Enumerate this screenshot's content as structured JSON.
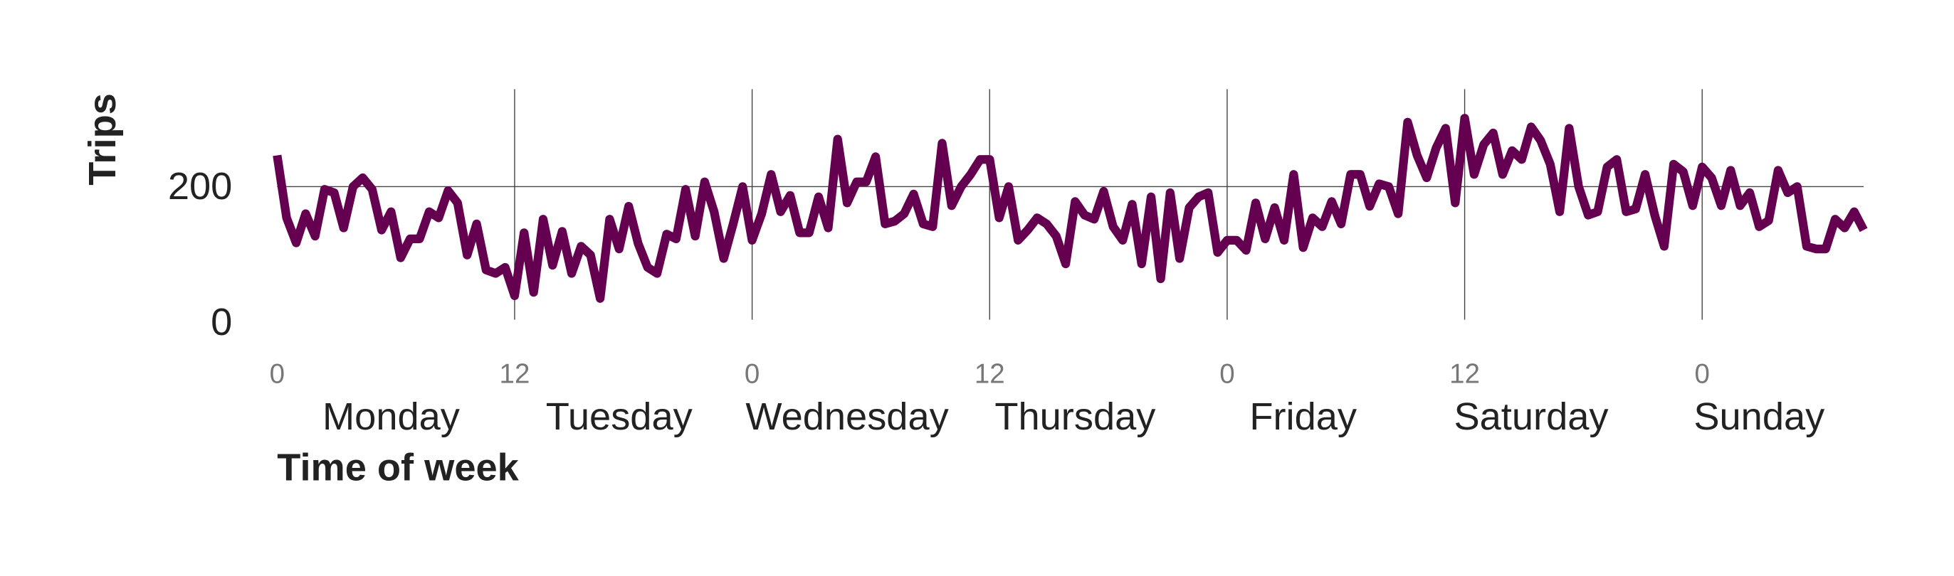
{
  "chart_data": {
    "type": "line",
    "x_label": "Time of week",
    "y_label": "Trips",
    "x": [
      0,
      1,
      2,
      3,
      4,
      5,
      6,
      7,
      8,
      9,
      10,
      11,
      12,
      13,
      14,
      15,
      16,
      17,
      18,
      19,
      20,
      21,
      22,
      23,
      24,
      25,
      26,
      27,
      28,
      29,
      30,
      31,
      32,
      33,
      34,
      35,
      36,
      37,
      38,
      39,
      40,
      41,
      42,
      43,
      44,
      45,
      46,
      47,
      48,
      49,
      50,
      51,
      52,
      53,
      54,
      55,
      56,
      57,
      58,
      59,
      60,
      61,
      62,
      63,
      64,
      65,
      66,
      67,
      68,
      69,
      70,
      71,
      72,
      73,
      74,
      75,
      76,
      77,
      78,
      79,
      80,
      81,
      82,
      83,
      84,
      85,
      86,
      87,
      88,
      89,
      90,
      91,
      92,
      93,
      94,
      95,
      96,
      97,
      98,
      99,
      100,
      101,
      102,
      103,
      104,
      105,
      106,
      107,
      108,
      109,
      110,
      111,
      112,
      113,
      114,
      115,
      116,
      117,
      118,
      119,
      120,
      121,
      122,
      123,
      124,
      125,
      126,
      127,
      128,
      129,
      130,
      131,
      132,
      133,
      134,
      135,
      136,
      137,
      138,
      139,
      140,
      141,
      142,
      143,
      144,
      145,
      146,
      147,
      148,
      149,
      150,
      151,
      152,
      153,
      154,
      155,
      156,
      157,
      158,
      159,
      160,
      161,
      162,
      163,
      164,
      165,
      166,
      167
    ],
    "series": [
      {
        "name": "Trips",
        "color": "#650050",
        "values": [
          246,
          154,
          117,
          160,
          127,
          196,
          191,
          139,
          200,
          213,
          196,
          136,
          163,
          95,
          123,
          123,
          163,
          154,
          194,
          176,
          99,
          145,
          77,
          72,
          81,
          39,
          132,
          44,
          152,
          84,
          134,
          72,
          112,
          99,
          35,
          152,
          108,
          171,
          116,
          81,
          72,
          130,
          123,
          196,
          127,
          207,
          163,
          94,
          145,
          200,
          121,
          160,
          218,
          163,
          187,
          132,
          132,
          185,
          139,
          270,
          176,
          207,
          207,
          244,
          145,
          149,
          160,
          189,
          145,
          141,
          264,
          172,
          200,
          218,
          240,
          240,
          154,
          200,
          121,
          136,
          154,
          145,
          127,
          86,
          178,
          158,
          152,
          193,
          141,
          121,
          174,
          86,
          185,
          64,
          191,
          94,
          169,
          185,
          191,
          103,
          121,
          121,
          106,
          176,
          123,
          169,
          121,
          218,
          110,
          154,
          141,
          178,
          145,
          218,
          218,
          171,
          204,
          200,
          160,
          295,
          246,
          213,
          257,
          286,
          176,
          301,
          218,
          262,
          279,
          218,
          253,
          240,
          288,
          268,
          233,
          163,
          286,
          200,
          158,
          163,
          229,
          240,
          163,
          167,
          218,
          158,
          112,
          233,
          222,
          172,
          229,
          213,
          172,
          224,
          172,
          191,
          141,
          150,
          224,
          191,
          200,
          112,
          108,
          108,
          152,
          139,
          163,
          136
        ]
      }
    ],
    "xlim": [
      0,
      167
    ],
    "xticks": [
      {
        "value": 0,
        "label": "0"
      },
      {
        "value": 25,
        "label": "12"
      },
      {
        "value": 50,
        "label": "0"
      },
      {
        "value": 75,
        "label": "12"
      },
      {
        "value": 100,
        "label": "0"
      },
      {
        "value": 125,
        "label": "12"
      },
      {
        "value": 150,
        "label": "0"
      }
    ],
    "day_ticks": [
      {
        "value": 12,
        "label": "Monday"
      },
      {
        "value": 36,
        "label": "Tuesday"
      },
      {
        "value": 60,
        "label": "Wednesday"
      },
      {
        "value": 84,
        "label": "Thursday"
      },
      {
        "value": 108,
        "label": "Friday"
      },
      {
        "value": 132,
        "label": "Saturday"
      },
      {
        "value": 156,
        "label": "Sunday"
      }
    ],
    "ylim": [
      0,
      340
    ],
    "yticks": [
      0,
      200
    ],
    "grid": true
  }
}
